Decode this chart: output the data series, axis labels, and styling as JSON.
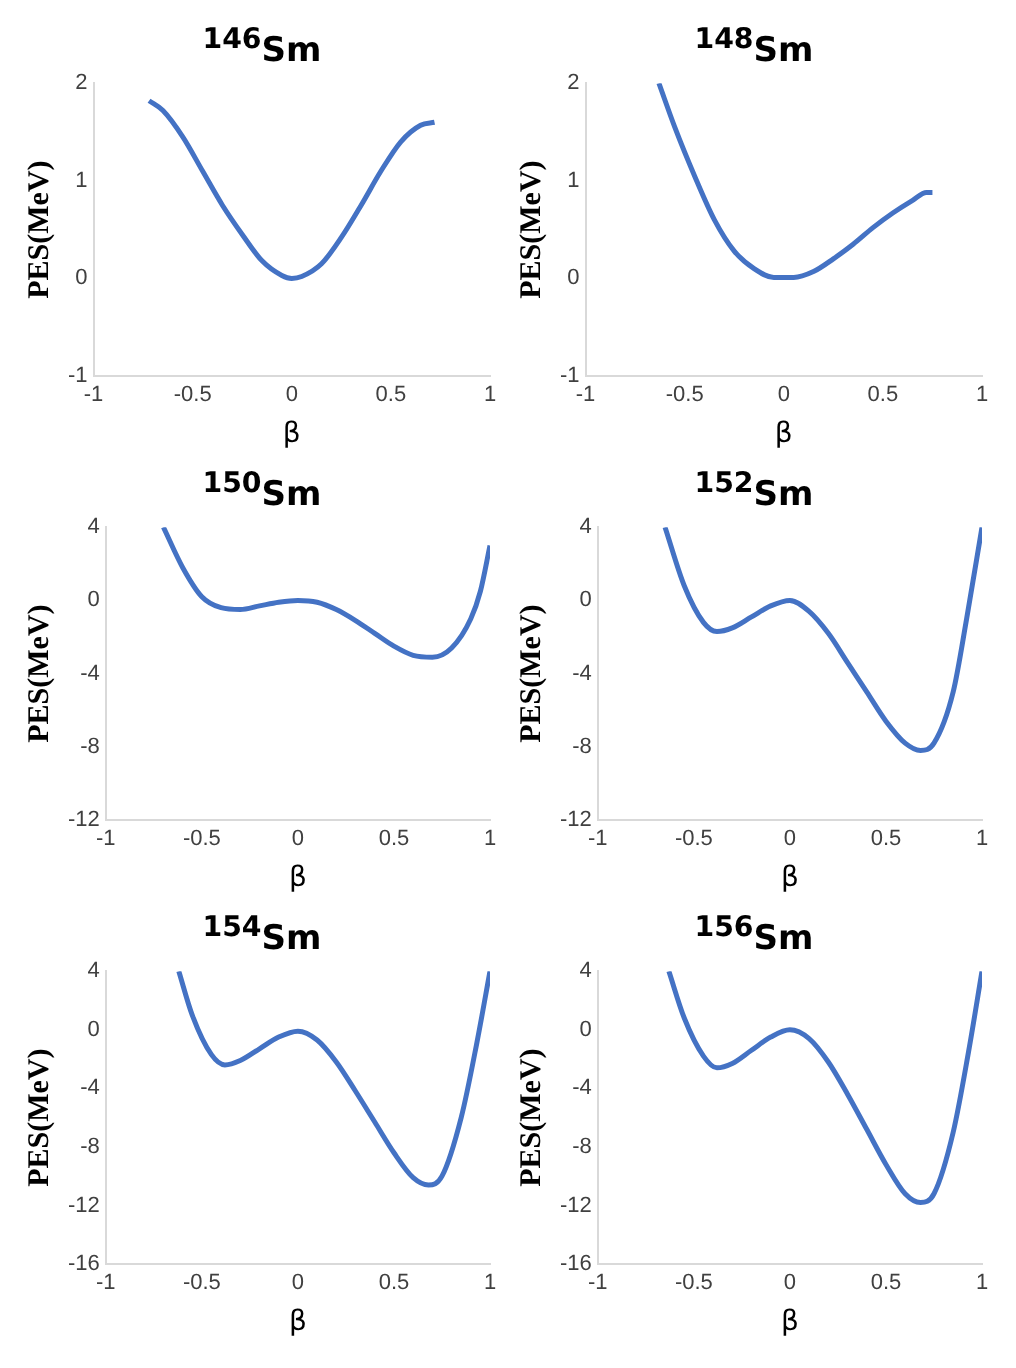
{
  "chart_data": [
    {
      "type": "line",
      "title": "$^{146}$Sm",
      "xlabel": "β",
      "ylabel": "PES(MeV)",
      "xlim": [
        -1,
        1
      ],
      "xticks": [
        -1,
        -0.5,
        0,
        0.5,
        1
      ],
      "ylim": [
        -1,
        2
      ],
      "yticks": [
        -1,
        0,
        1,
        2
      ],
      "series": [
        {
          "color": "#4472c4",
          "x": [
            -0.72,
            -0.65,
            -0.55,
            -0.45,
            -0.35,
            -0.25,
            -0.15,
            -0.05,
            0,
            0.05,
            0.15,
            0.25,
            0.35,
            0.45,
            0.55,
            0.65,
            0.72
          ],
          "values": [
            1.82,
            1.72,
            1.45,
            1.1,
            0.75,
            0.45,
            0.18,
            0.03,
            0,
            0.02,
            0.15,
            0.42,
            0.75,
            1.1,
            1.4,
            1.57,
            1.6
          ]
        }
      ]
    },
    {
      "type": "line",
      "title": "$^{148}$Sm",
      "xlabel": "β",
      "ylabel": "PES(MeV)",
      "xlim": [
        -1,
        1
      ],
      "xticks": [
        -1,
        -0.5,
        0,
        0.5,
        1
      ],
      "ylim": [
        -1,
        2
      ],
      "yticks": [
        -1,
        0,
        1,
        2
      ],
      "series": [
        {
          "color": "#4472c4",
          "x": [
            -0.63,
            -0.55,
            -0.45,
            -0.35,
            -0.25,
            -0.15,
            -0.05,
            0.05,
            0.15,
            0.25,
            0.35,
            0.45,
            0.55,
            0.65,
            0.72,
            0.75
          ],
          "values": [
            2,
            1.55,
            1.05,
            0.6,
            0.28,
            0.1,
            0.01,
            0.01,
            0.07,
            0.2,
            0.35,
            0.52,
            0.67,
            0.8,
            0.88,
            0.88
          ]
        }
      ]
    },
    {
      "type": "line",
      "title": "$^{150}$Sm",
      "xlabel": "β",
      "ylabel": "PES(MeV)",
      "xlim": [
        -1,
        1
      ],
      "xticks": [
        -1,
        -0.5,
        0,
        0.5,
        1
      ],
      "ylim": [
        -12,
        4
      ],
      "yticks": [
        -12,
        -8,
        -4,
        0,
        4
      ],
      "series": [
        {
          "color": "#4472c4",
          "x": [
            -0.7,
            -0.6,
            -0.5,
            -0.4,
            -0.3,
            -0.2,
            -0.1,
            0,
            0.1,
            0.2,
            0.3,
            0.4,
            0.5,
            0.6,
            0.7,
            0.8,
            0.9,
            0.95,
            1
          ],
          "values": [
            4,
            1.8,
            0.2,
            -0.4,
            -0.5,
            -0.3,
            -0.1,
            0,
            -0.1,
            -0.5,
            -1.1,
            -1.8,
            -2.5,
            -3,
            -3.1,
            -2.6,
            -1,
            0.5,
            3
          ]
        }
      ]
    },
    {
      "type": "line",
      "title": "$^{152}$Sm",
      "xlabel": "β",
      "ylabel": "PES(MeV)",
      "xlim": [
        -1,
        1
      ],
      "xticks": [
        -1,
        -0.5,
        0,
        0.5,
        1
      ],
      "ylim": [
        -12,
        4
      ],
      "yticks": [
        -12,
        -8,
        -4,
        0,
        4
      ],
      "series": [
        {
          "color": "#4472c4",
          "x": [
            -0.65,
            -0.55,
            -0.45,
            -0.38,
            -0.3,
            -0.2,
            -0.1,
            0,
            0.1,
            0.2,
            0.3,
            0.4,
            0.5,
            0.6,
            0.68,
            0.75,
            0.85,
            0.92,
            1
          ],
          "values": [
            4,
            0.8,
            -1.2,
            -1.7,
            -1.5,
            -0.9,
            -0.3,
            0,
            -0.6,
            -1.8,
            -3.4,
            -5,
            -6.6,
            -7.8,
            -8.2,
            -7.8,
            -5,
            -1,
            4
          ]
        }
      ]
    },
    {
      "type": "line",
      "title": "$^{154}$Sm",
      "xlabel": "β",
      "ylabel": "PES(MeV)",
      "xlim": [
        -1,
        1
      ],
      "xticks": [
        -1,
        -0.5,
        0,
        0.5,
        1
      ],
      "ylim": [
        -16,
        4
      ],
      "yticks": [
        -16,
        -12,
        -8,
        -4,
        0,
        4
      ],
      "series": [
        {
          "color": "#4472c4",
          "x": [
            -0.62,
            -0.55,
            -0.45,
            -0.38,
            -0.3,
            -0.2,
            -0.1,
            0,
            0.1,
            0.2,
            0.3,
            0.4,
            0.5,
            0.6,
            0.68,
            0.75,
            0.85,
            0.93,
            1
          ],
          "values": [
            4,
            1,
            -1.7,
            -2.4,
            -2.1,
            -1.3,
            -0.5,
            -0.1,
            -0.7,
            -2.2,
            -4.2,
            -6.3,
            -8.4,
            -10.1,
            -10.6,
            -10,
            -6,
            -1,
            4
          ]
        }
      ]
    },
    {
      "type": "line",
      "title": "$^{156}$Sm",
      "xlabel": "β",
      "ylabel": "PES(MeV)",
      "xlim": [
        -1,
        1
      ],
      "xticks": [
        -1,
        -0.5,
        0,
        0.5,
        1
      ],
      "ylim": [
        -16,
        4
      ],
      "yticks": [
        -16,
        -12,
        -8,
        -4,
        0,
        4
      ],
      "series": [
        {
          "color": "#4472c4",
          "x": [
            -0.63,
            -0.55,
            -0.45,
            -0.38,
            -0.3,
            -0.2,
            -0.1,
            0,
            0.1,
            0.2,
            0.3,
            0.4,
            0.5,
            0.6,
            0.68,
            0.75,
            0.85,
            0.93,
            1
          ],
          "values": [
            4,
            0.8,
            -1.8,
            -2.6,
            -2.3,
            -1.4,
            -0.5,
            0,
            -0.6,
            -2.2,
            -4.4,
            -6.8,
            -9.2,
            -11.2,
            -11.8,
            -11.2,
            -7,
            -1.5,
            4
          ]
        }
      ]
    }
  ]
}
